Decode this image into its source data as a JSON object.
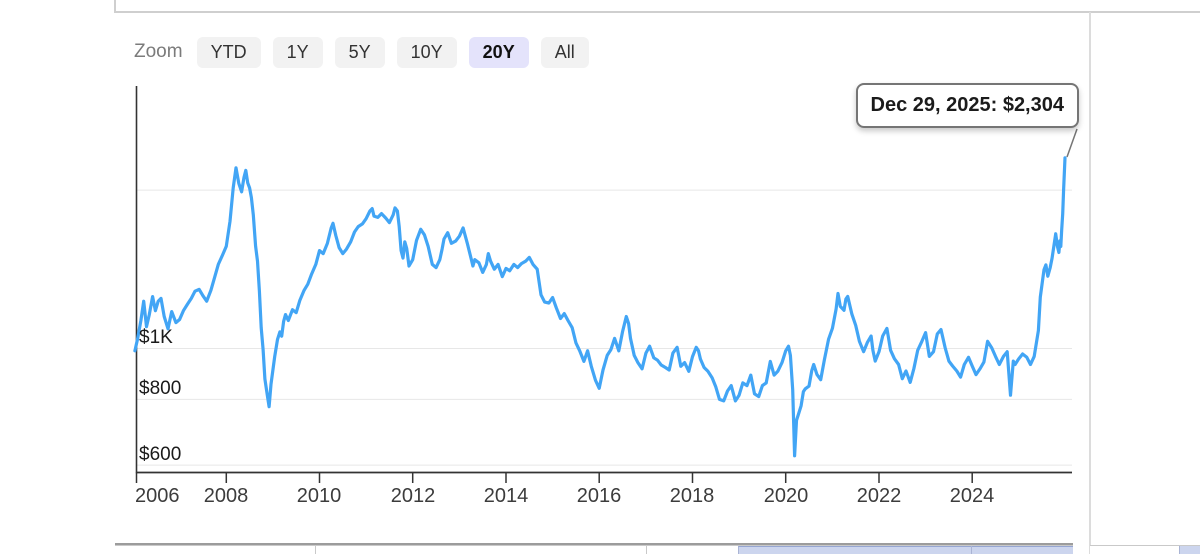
{
  "zoom_controls": {
    "label": "Zoom",
    "buttons": [
      {
        "label": "YTD",
        "active": false
      },
      {
        "label": "1Y",
        "active": false
      },
      {
        "label": "5Y",
        "active": false
      },
      {
        "label": "10Y",
        "active": false
      },
      {
        "label": "20Y",
        "active": true
      },
      {
        "label": "All",
        "active": false
      }
    ]
  },
  "tooltip": {
    "text": "Dec 29, 2025: $2,304"
  },
  "icons": {
    "table_icon": "lock-icon"
  },
  "chart_data": {
    "type": "line",
    "y_scale": "log",
    "line_color": "#42a5f5",
    "grid_color": "#e7e7e7",
    "axis_color": "#333333",
    "active_button_bg": "#e4e3fb",
    "x_range": [
      2006.075,
      2026.14
    ],
    "y_range": [
      581,
      3155
    ],
    "y_gridlines": [
      600,
      800,
      1000,
      2000
    ],
    "y_tick_labels": [
      {
        "text": "$1K",
        "value": 1000
      },
      {
        "text": "$800",
        "value": 800
      },
      {
        "text": "$600",
        "value": 600
      }
    ],
    "x_ticks": [
      2006,
      2008,
      2010,
      2012,
      2014,
      2016,
      2018,
      2020,
      2022,
      2024
    ],
    "highlight_point": {
      "date_label": "Dec 29, 2025",
      "value": 2304,
      "x": 2025.99
    },
    "points": [
      [
        2006.04,
        990
      ],
      [
        2006.1,
        1045
      ],
      [
        2006.17,
        1130
      ],
      [
        2006.23,
        1230
      ],
      [
        2006.29,
        1100
      ],
      [
        2006.35,
        1160
      ],
      [
        2006.42,
        1255
      ],
      [
        2006.48,
        1180
      ],
      [
        2006.54,
        1230
      ],
      [
        2006.6,
        1245
      ],
      [
        2006.67,
        1150
      ],
      [
        2006.75,
        1090
      ],
      [
        2006.83,
        1175
      ],
      [
        2006.92,
        1120
      ],
      [
        2007.0,
        1135
      ],
      [
        2007.08,
        1180
      ],
      [
        2007.17,
        1215
      ],
      [
        2007.25,
        1245
      ],
      [
        2007.33,
        1285
      ],
      [
        2007.42,
        1295
      ],
      [
        2007.5,
        1260
      ],
      [
        2007.58,
        1230
      ],
      [
        2007.67,
        1290
      ],
      [
        2007.75,
        1365
      ],
      [
        2007.83,
        1445
      ],
      [
        2007.92,
        1505
      ],
      [
        2008.0,
        1565
      ],
      [
        2008.08,
        1745
      ],
      [
        2008.15,
        2020
      ],
      [
        2008.21,
        2205
      ],
      [
        2008.27,
        2060
      ],
      [
        2008.33,
        1985
      ],
      [
        2008.38,
        2115
      ],
      [
        2008.42,
        2180
      ],
      [
        2008.46,
        2065
      ],
      [
        2008.5,
        2020
      ],
      [
        2008.54,
        1935
      ],
      [
        2008.58,
        1795
      ],
      [
        2008.63,
        1565
      ],
      [
        2008.67,
        1465
      ],
      [
        2008.71,
        1285
      ],
      [
        2008.75,
        1095
      ],
      [
        2008.79,
        995
      ],
      [
        2008.83,
        875
      ],
      [
        2008.88,
        815
      ],
      [
        2008.92,
        775
      ],
      [
        2008.96,
        855
      ],
      [
        2009.04,
        965
      ],
      [
        2009.1,
        1040
      ],
      [
        2009.15,
        1075
      ],
      [
        2009.19,
        1055
      ],
      [
        2009.23,
        1125
      ],
      [
        2009.27,
        1160
      ],
      [
        2009.33,
        1130
      ],
      [
        2009.42,
        1185
      ],
      [
        2009.5,
        1170
      ],
      [
        2009.58,
        1235
      ],
      [
        2009.67,
        1290
      ],
      [
        2009.75,
        1325
      ],
      [
        2009.83,
        1385
      ],
      [
        2009.92,
        1445
      ],
      [
        2010.0,
        1535
      ],
      [
        2010.08,
        1515
      ],
      [
        2010.17,
        1585
      ],
      [
        2010.25,
        1695
      ],
      [
        2010.29,
        1730
      ],
      [
        2010.35,
        1640
      ],
      [
        2010.42,
        1555
      ],
      [
        2010.5,
        1515
      ],
      [
        2010.58,
        1545
      ],
      [
        2010.67,
        1595
      ],
      [
        2010.75,
        1665
      ],
      [
        2010.83,
        1705
      ],
      [
        2010.92,
        1725
      ],
      [
        2011.0,
        1765
      ],
      [
        2011.08,
        1825
      ],
      [
        2011.13,
        1845
      ],
      [
        2011.17,
        1785
      ],
      [
        2011.25,
        1775
      ],
      [
        2011.33,
        1805
      ],
      [
        2011.42,
        1770
      ],
      [
        2011.5,
        1735
      ],
      [
        2011.58,
        1795
      ],
      [
        2011.62,
        1850
      ],
      [
        2011.67,
        1825
      ],
      [
        2011.71,
        1705
      ],
      [
        2011.75,
        1535
      ],
      [
        2011.79,
        1485
      ],
      [
        2011.83,
        1595
      ],
      [
        2011.87,
        1550
      ],
      [
        2011.92,
        1435
      ],
      [
        2012.0,
        1475
      ],
      [
        2012.08,
        1605
      ],
      [
        2012.17,
        1685
      ],
      [
        2012.25,
        1645
      ],
      [
        2012.33,
        1565
      ],
      [
        2012.42,
        1445
      ],
      [
        2012.5,
        1425
      ],
      [
        2012.58,
        1475
      ],
      [
        2012.63,
        1545
      ],
      [
        2012.67,
        1615
      ],
      [
        2012.75,
        1660
      ],
      [
        2012.83,
        1585
      ],
      [
        2012.92,
        1600
      ],
      [
        2013.0,
        1635
      ],
      [
        2013.08,
        1695
      ],
      [
        2013.17,
        1585
      ],
      [
        2013.25,
        1485
      ],
      [
        2013.29,
        1435
      ],
      [
        2013.33,
        1475
      ],
      [
        2013.42,
        1455
      ],
      [
        2013.5,
        1395
      ],
      [
        2013.58,
        1445
      ],
      [
        2013.62,
        1515
      ],
      [
        2013.67,
        1465
      ],
      [
        2013.75,
        1415
      ],
      [
        2013.83,
        1445
      ],
      [
        2013.92,
        1370
      ],
      [
        2014.0,
        1420
      ],
      [
        2014.08,
        1405
      ],
      [
        2014.17,
        1445
      ],
      [
        2014.25,
        1425
      ],
      [
        2014.33,
        1450
      ],
      [
        2014.42,
        1465
      ],
      [
        2014.5,
        1490
      ],
      [
        2014.58,
        1445
      ],
      [
        2014.67,
        1415
      ],
      [
        2014.75,
        1265
      ],
      [
        2014.83,
        1225
      ],
      [
        2014.92,
        1220
      ],
      [
        2015.0,
        1250
      ],
      [
        2015.08,
        1195
      ],
      [
        2015.17,
        1140
      ],
      [
        2015.25,
        1165
      ],
      [
        2015.33,
        1130
      ],
      [
        2015.42,
        1095
      ],
      [
        2015.5,
        1025
      ],
      [
        2015.58,
        990
      ],
      [
        2015.67,
        945
      ],
      [
        2015.75,
        990
      ],
      [
        2015.83,
        925
      ],
      [
        2015.92,
        870
      ],
      [
        2016.0,
        840
      ],
      [
        2016.08,
        910
      ],
      [
        2016.17,
        970
      ],
      [
        2016.25,
        995
      ],
      [
        2016.33,
        1045
      ],
      [
        2016.42,
        990
      ],
      [
        2016.5,
        1075
      ],
      [
        2016.58,
        1150
      ],
      [
        2016.63,
        1115
      ],
      [
        2016.67,
        1045
      ],
      [
        2016.75,
        970
      ],
      [
        2016.83,
        940
      ],
      [
        2016.92,
        915
      ],
      [
        2017.0,
        980
      ],
      [
        2017.08,
        1010
      ],
      [
        2017.17,
        960
      ],
      [
        2017.25,
        950
      ],
      [
        2017.33,
        930
      ],
      [
        2017.42,
        920
      ],
      [
        2017.5,
        910
      ],
      [
        2017.58,
        980
      ],
      [
        2017.67,
        1005
      ],
      [
        2017.75,
        925
      ],
      [
        2017.83,
        940
      ],
      [
        2017.92,
        905
      ],
      [
        2018.0,
        965
      ],
      [
        2018.08,
        1005
      ],
      [
        2018.13,
        990
      ],
      [
        2018.17,
        955
      ],
      [
        2018.25,
        920
      ],
      [
        2018.33,
        905
      ],
      [
        2018.42,
        880
      ],
      [
        2018.5,
        845
      ],
      [
        2018.58,
        800
      ],
      [
        2018.67,
        795
      ],
      [
        2018.75,
        830
      ],
      [
        2018.83,
        850
      ],
      [
        2018.92,
        795
      ],
      [
        2019.0,
        815
      ],
      [
        2019.08,
        860
      ],
      [
        2019.17,
        850
      ],
      [
        2019.25,
        890
      ],
      [
        2019.33,
        820
      ],
      [
        2019.42,
        810
      ],
      [
        2019.5,
        850
      ],
      [
        2019.58,
        860
      ],
      [
        2019.67,
        945
      ],
      [
        2019.75,
        890
      ],
      [
        2019.83,
        905
      ],
      [
        2019.92,
        940
      ],
      [
        2020.0,
        990
      ],
      [
        2020.06,
        1010
      ],
      [
        2020.1,
        970
      ],
      [
        2020.15,
        835
      ],
      [
        2020.19,
        625
      ],
      [
        2020.23,
        730
      ],
      [
        2020.27,
        748
      ],
      [
        2020.33,
        778
      ],
      [
        2020.38,
        828
      ],
      [
        2020.42,
        838
      ],
      [
        2020.5,
        848
      ],
      [
        2020.56,
        908
      ],
      [
        2020.6,
        932
      ],
      [
        2020.67,
        892
      ],
      [
        2020.75,
        872
      ],
      [
        2020.83,
        952
      ],
      [
        2020.92,
        1042
      ],
      [
        2021.0,
        1092
      ],
      [
        2021.08,
        1188
      ],
      [
        2021.12,
        1272
      ],
      [
        2021.17,
        1202
      ],
      [
        2021.25,
        1182
      ],
      [
        2021.29,
        1242
      ],
      [
        2021.33,
        1256
      ],
      [
        2021.42,
        1162
      ],
      [
        2021.5,
        1106
      ],
      [
        2021.58,
        1032
      ],
      [
        2021.67,
        986
      ],
      [
        2021.75,
        1026
      ],
      [
        2021.83,
        1056
      ],
      [
        2021.87,
        992
      ],
      [
        2021.92,
        946
      ],
      [
        2022.0,
        986
      ],
      [
        2022.08,
        1056
      ],
      [
        2022.17,
        1092
      ],
      [
        2022.25,
        992
      ],
      [
        2022.33,
        956
      ],
      [
        2022.42,
        932
      ],
      [
        2022.5,
        876
      ],
      [
        2022.58,
        906
      ],
      [
        2022.67,
        862
      ],
      [
        2022.75,
        916
      ],
      [
        2022.83,
        992
      ],
      [
        2022.92,
        1032
      ],
      [
        2023.0,
        1072
      ],
      [
        2023.08,
        966
      ],
      [
        2023.17,
        986
      ],
      [
        2023.25,
        1066
      ],
      [
        2023.33,
        1086
      ],
      [
        2023.42,
        1002
      ],
      [
        2023.5,
        946
      ],
      [
        2023.58,
        926
      ],
      [
        2023.67,
        906
      ],
      [
        2023.75,
        882
      ],
      [
        2023.83,
        932
      ],
      [
        2023.92,
        962
      ],
      [
        2024.0,
        926
      ],
      [
        2024.08,
        892
      ],
      [
        2024.17,
        916
      ],
      [
        2024.25,
        942
      ],
      [
        2024.33,
        1032
      ],
      [
        2024.42,
        1002
      ],
      [
        2024.5,
        966
      ],
      [
        2024.58,
        932
      ],
      [
        2024.67,
        966
      ],
      [
        2024.75,
        986
      ],
      [
        2024.82,
        815
      ],
      [
        2024.88,
        946
      ],
      [
        2024.92,
        932
      ],
      [
        2025.0,
        956
      ],
      [
        2025.08,
        976
      ],
      [
        2025.17,
        962
      ],
      [
        2025.25,
        932
      ],
      [
        2025.33,
        966
      ],
      [
        2025.42,
        1082
      ],
      [
        2025.46,
        1252
      ],
      [
        2025.5,
        1332
      ],
      [
        2025.54,
        1412
      ],
      [
        2025.58,
        1442
      ],
      [
        2025.62,
        1372
      ],
      [
        2025.67,
        1422
      ],
      [
        2025.71,
        1482
      ],
      [
        2025.75,
        1562
      ],
      [
        2025.79,
        1652
      ],
      [
        2025.83,
        1562
      ],
      [
        2025.86,
        1522
      ],
      [
        2025.88,
        1602
      ],
      [
        2025.9,
        1562
      ],
      [
        2025.92,
        1682
      ],
      [
        2025.94,
        1802
      ],
      [
        2025.96,
        2002
      ],
      [
        2025.99,
        2304
      ]
    ]
  }
}
